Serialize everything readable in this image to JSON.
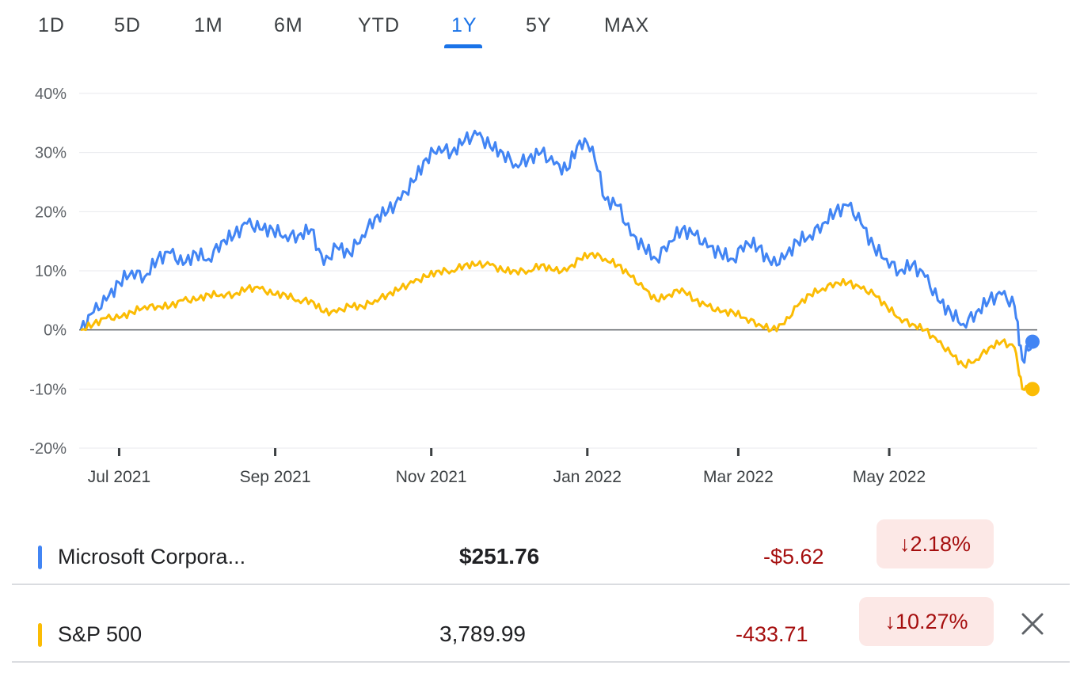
{
  "tabs": [
    {
      "label": "1D"
    },
    {
      "label": "5D"
    },
    {
      "label": "1M"
    },
    {
      "label": "6M"
    },
    {
      "label": "YTD"
    },
    {
      "label": "1Y"
    },
    {
      "label": "5Y"
    },
    {
      "label": "MAX"
    }
  ],
  "active_tab": "1Y",
  "chart_data": {
    "type": "line",
    "y_ticks": [
      "40%",
      "30%",
      "20%",
      "10%",
      "0%",
      "-10%",
      "-20%"
    ],
    "ylim": [
      -20,
      40
    ],
    "x_ticks": [
      "Jul 2021",
      "Sep 2021",
      "Nov 2021",
      "Jan 2022",
      "Mar 2022",
      "May 2022"
    ],
    "x_tick_days": [
      15,
      76,
      137,
      198,
      257,
      316
    ],
    "baseline": 0,
    "series": [
      {
        "name": "Microsoft Corporation",
        "color": "#4285f4",
        "points": [
          [
            0,
            0
          ],
          [
            5,
            3
          ],
          [
            10,
            5
          ],
          [
            15,
            8
          ],
          [
            20,
            10
          ],
          [
            25,
            9
          ],
          [
            30,
            12
          ],
          [
            35,
            13
          ],
          [
            40,
            11
          ],
          [
            45,
            13
          ],
          [
            50,
            12
          ],
          [
            55,
            15
          ],
          [
            60,
            16
          ],
          [
            65,
            18
          ],
          [
            70,
            17
          ],
          [
            75,
            17
          ],
          [
            80,
            16
          ],
          [
            85,
            16
          ],
          [
            90,
            17
          ],
          [
            95,
            11
          ],
          [
            100,
            14
          ],
          [
            105,
            13
          ],
          [
            110,
            16
          ],
          [
            115,
            19
          ],
          [
            120,
            20
          ],
          [
            125,
            22
          ],
          [
            130,
            25
          ],
          [
            135,
            29
          ],
          [
            140,
            31
          ],
          [
            145,
            30
          ],
          [
            150,
            32
          ],
          [
            155,
            33
          ],
          [
            160,
            31
          ],
          [
            165,
            30
          ],
          [
            170,
            28
          ],
          [
            175,
            29
          ],
          [
            180,
            30
          ],
          [
            185,
            28
          ],
          [
            190,
            27
          ],
          [
            195,
            32
          ],
          [
            200,
            31
          ],
          [
            205,
            22
          ],
          [
            210,
            21
          ],
          [
            215,
            16
          ],
          [
            220,
            14
          ],
          [
            225,
            12
          ],
          [
            230,
            15
          ],
          [
            235,
            17
          ],
          [
            240,
            16
          ],
          [
            245,
            14
          ],
          [
            250,
            13
          ],
          [
            255,
            12
          ],
          [
            260,
            15
          ],
          [
            265,
            14
          ],
          [
            270,
            11
          ],
          [
            275,
            12
          ],
          [
            280,
            15
          ],
          [
            285,
            16
          ],
          [
            290,
            18
          ],
          [
            295,
            20
          ],
          [
            300,
            21
          ],
          [
            305,
            18
          ],
          [
            310,
            14
          ],
          [
            315,
            12
          ],
          [
            320,
            10
          ],
          [
            325,
            11
          ],
          [
            330,
            9
          ],
          [
            335,
            5
          ],
          [
            340,
            3
          ],
          [
            345,
            1
          ],
          [
            350,
            3
          ],
          [
            355,
            5
          ],
          [
            360,
            6
          ],
          [
            365,
            4
          ],
          [
            368,
            -5
          ],
          [
            372,
            -2
          ]
        ]
      },
      {
        "name": "S&P 500",
        "color": "#fbbc04",
        "points": [
          [
            0,
            0
          ],
          [
            5,
            1
          ],
          [
            10,
            2
          ],
          [
            15,
            2
          ],
          [
            20,
            3
          ],
          [
            25,
            4
          ],
          [
            30,
            4
          ],
          [
            35,
            4
          ],
          [
            40,
            5
          ],
          [
            45,
            5
          ],
          [
            50,
            6
          ],
          [
            55,
            6
          ],
          [
            60,
            6
          ],
          [
            65,
            7
          ],
          [
            70,
            7
          ],
          [
            75,
            6
          ],
          [
            80,
            6
          ],
          [
            85,
            5
          ],
          [
            90,
            5
          ],
          [
            95,
            3
          ],
          [
            100,
            3
          ],
          [
            105,
            4
          ],
          [
            110,
            4
          ],
          [
            115,
            5
          ],
          [
            120,
            6
          ],
          [
            125,
            7
          ],
          [
            130,
            8
          ],
          [
            135,
            9
          ],
          [
            140,
            10
          ],
          [
            145,
            10
          ],
          [
            150,
            11
          ],
          [
            155,
            11
          ],
          [
            160,
            11
          ],
          [
            165,
            10
          ],
          [
            170,
            10
          ],
          [
            175,
            10
          ],
          [
            180,
            11
          ],
          [
            185,
            10
          ],
          [
            190,
            10
          ],
          [
            195,
            12
          ],
          [
            200,
            13
          ],
          [
            205,
            12
          ],
          [
            210,
            11
          ],
          [
            215,
            9
          ],
          [
            220,
            7
          ],
          [
            225,
            5
          ],
          [
            230,
            6
          ],
          [
            235,
            7
          ],
          [
            240,
            5
          ],
          [
            245,
            4
          ],
          [
            250,
            3
          ],
          [
            255,
            3
          ],
          [
            260,
            2
          ],
          [
            265,
            1
          ],
          [
            270,
            0
          ],
          [
            275,
            1
          ],
          [
            280,
            4
          ],
          [
            285,
            6
          ],
          [
            290,
            7
          ],
          [
            295,
            8
          ],
          [
            300,
            8
          ],
          [
            305,
            7
          ],
          [
            310,
            6
          ],
          [
            315,
            4
          ],
          [
            320,
            2
          ],
          [
            325,
            1
          ],
          [
            330,
            0
          ],
          [
            335,
            -2
          ],
          [
            340,
            -4
          ],
          [
            345,
            -6
          ],
          [
            350,
            -5
          ],
          [
            355,
            -3
          ],
          [
            360,
            -2
          ],
          [
            365,
            -3
          ],
          [
            368,
            -10
          ],
          [
            372,
            -10
          ]
        ]
      }
    ]
  },
  "rows": [
    {
      "name": "Microsoft Corpora...",
      "price": "$251.76",
      "change": "-$5.62",
      "percent": "2.18%",
      "arrow": "↓",
      "color": "#4285f4"
    },
    {
      "name": "S&P 500",
      "price": "3,789.99",
      "change": "-433.71",
      "percent": "10.27%",
      "arrow": "↓",
      "color": "#fbbc04"
    }
  ],
  "close_icon": "close-icon"
}
